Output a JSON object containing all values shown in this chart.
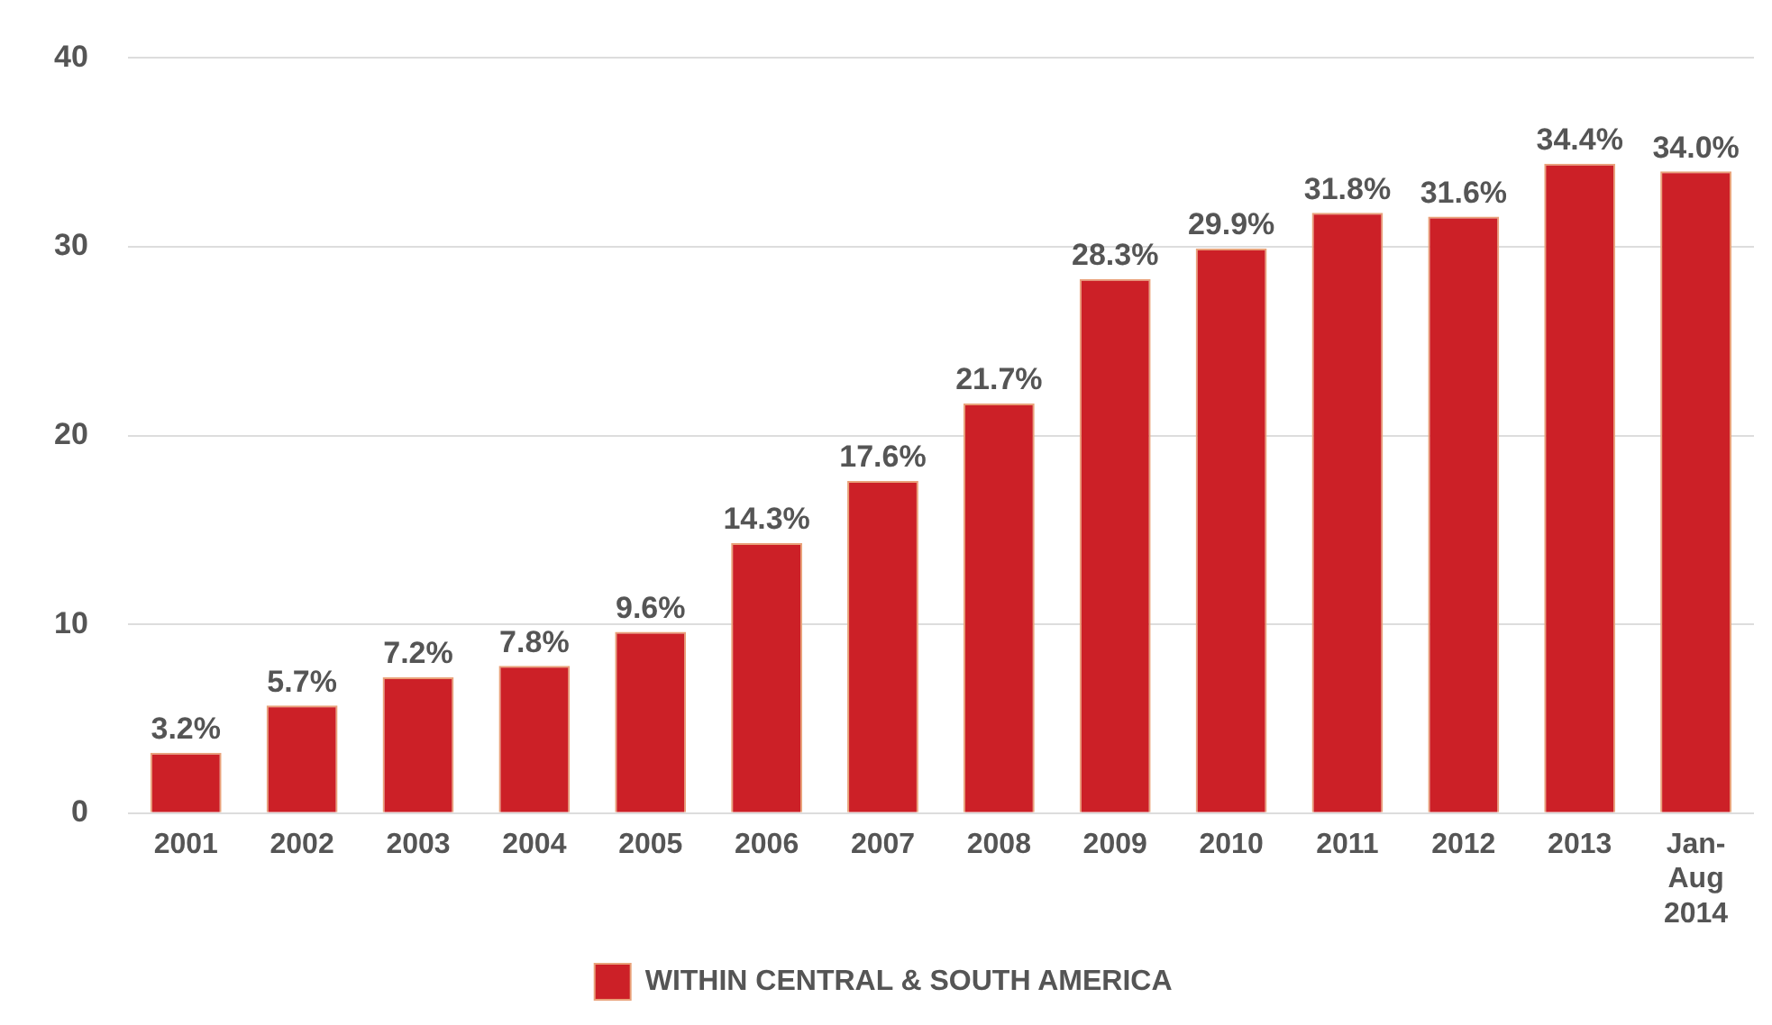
{
  "chart_data": {
    "type": "bar",
    "categories": [
      "2001",
      "2002",
      "2003",
      "2004",
      "2005",
      "2006",
      "2007",
      "2008",
      "2009",
      "2010",
      "2011",
      "2012",
      "2013",
      "Jan-Aug 2014"
    ],
    "series": [
      {
        "name": "WITHIN CENTRAL & SOUTH AMERICA",
        "color": "#cc2027",
        "values": [
          3.2,
          5.7,
          7.2,
          7.8,
          9.6,
          14.3,
          17.6,
          21.7,
          28.3,
          29.9,
          31.8,
          31.6,
          34.4,
          34.0
        ],
        "value_labels": [
          "3.2%",
          "5.7%",
          "7.2%",
          "7.8%",
          "9.6%",
          "14.3%",
          "17.6%",
          "21.7%",
          "28.3%",
          "29.9%",
          "31.8%",
          "31.6%",
          "34.4%",
          "34.0%"
        ]
      }
    ],
    "ylim": [
      0,
      40
    ],
    "yticks": [
      0,
      10,
      20,
      30,
      40
    ],
    "grid": "y",
    "legend": "bottom"
  }
}
